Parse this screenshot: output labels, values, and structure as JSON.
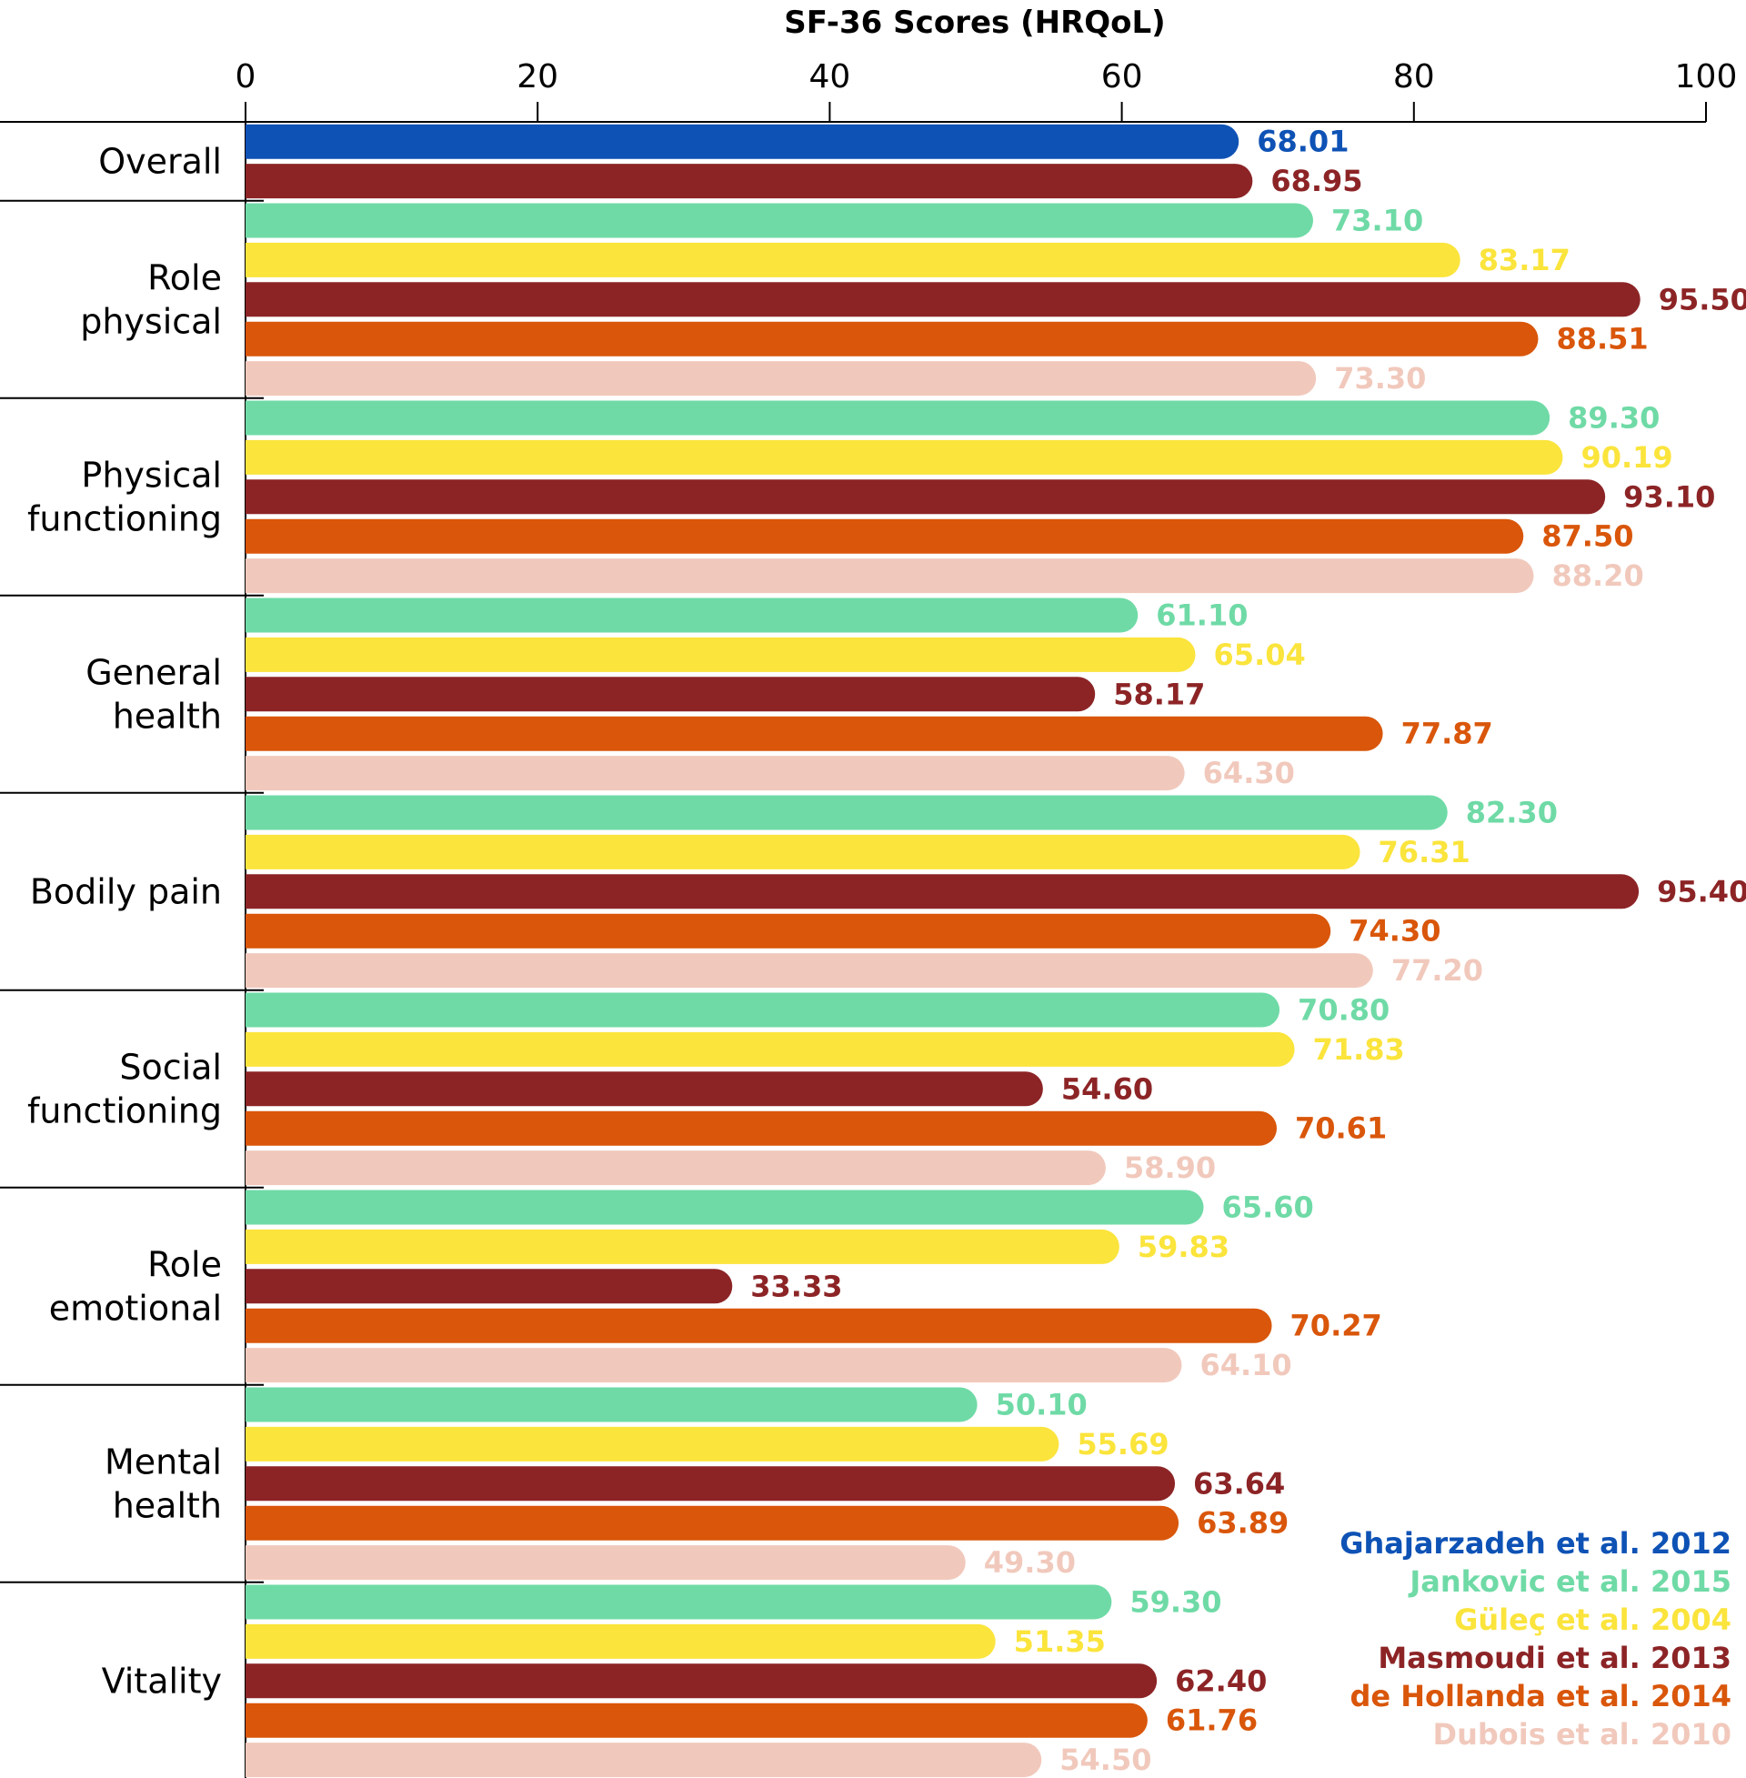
{
  "chart_data": {
    "type": "bar",
    "orientation": "horizontal",
    "title": "SF-36 Scores (HRQoL)",
    "xlabel": "SF-36 Scores (HRQoL)",
    "ylabel": "",
    "xlim": [
      0,
      100
    ],
    "x_ticks": [
      0,
      20,
      40,
      60,
      80,
      100
    ],
    "legend_position": "bottom-right",
    "series": [
      {
        "name": "Ghajarzadeh et al. 2012",
        "color": "#0e52b5"
      },
      {
        "name": "Jankovic et al. 2015",
        "color": "#6fdaa6"
      },
      {
        "name": "Güleç et al. 2004",
        "color": "#fbe43c"
      },
      {
        "name": "Masmoudi et al. 2013",
        "color": "#8c2426"
      },
      {
        "name": "de Hollanda et al. 2014",
        "color": "#d9560a"
      },
      {
        "name": "Dubois et al. 2010",
        "color": "#f1c9bc"
      }
    ],
    "categories": [
      {
        "label": [
          "Overall"
        ],
        "bars": [
          {
            "series": 0,
            "value": 68.01,
            "label": "68.01"
          },
          {
            "series": 3,
            "value": 68.95,
            "label": "68.95"
          }
        ]
      },
      {
        "label": [
          "Role",
          "physical"
        ],
        "bars": [
          {
            "series": 1,
            "value": 73.1,
            "label": "73.10"
          },
          {
            "series": 2,
            "value": 83.17,
            "label": "83.17"
          },
          {
            "series": 3,
            "value": 95.5,
            "label": "95.50"
          },
          {
            "series": 4,
            "value": 88.51,
            "label": "88.51"
          },
          {
            "series": 5,
            "value": 73.3,
            "label": "73.30"
          }
        ]
      },
      {
        "label": [
          "Physical",
          "functioning"
        ],
        "bars": [
          {
            "series": 1,
            "value": 89.3,
            "label": "89.30"
          },
          {
            "series": 2,
            "value": 90.19,
            "label": "90.19"
          },
          {
            "series": 3,
            "value": 93.1,
            "label": "93.10"
          },
          {
            "series": 4,
            "value": 87.5,
            "label": "87.50"
          },
          {
            "series": 5,
            "value": 88.2,
            "label": "88.20"
          }
        ]
      },
      {
        "label": [
          "General",
          "health"
        ],
        "bars": [
          {
            "series": 1,
            "value": 61.1,
            "label": "61.10"
          },
          {
            "series": 2,
            "value": 65.04,
            "label": "65.04"
          },
          {
            "series": 3,
            "value": 58.17,
            "label": "58.17"
          },
          {
            "series": 4,
            "value": 77.87,
            "label": "77.87"
          },
          {
            "series": 5,
            "value": 64.3,
            "label": "64.30"
          }
        ]
      },
      {
        "label": [
          "Bodily pain"
        ],
        "bars": [
          {
            "series": 1,
            "value": 82.3,
            "label": "82.30"
          },
          {
            "series": 2,
            "value": 76.31,
            "label": "76.31"
          },
          {
            "series": 3,
            "value": 95.4,
            "label": "95.40"
          },
          {
            "series": 4,
            "value": 74.3,
            "label": "74.30"
          },
          {
            "series": 5,
            "value": 77.2,
            "label": "77.20"
          }
        ]
      },
      {
        "label": [
          "Social",
          "functioning"
        ],
        "bars": [
          {
            "series": 1,
            "value": 70.8,
            "label": "70.80"
          },
          {
            "series": 2,
            "value": 71.83,
            "label": "71.83"
          },
          {
            "series": 3,
            "value": 54.6,
            "label": "54.60"
          },
          {
            "series": 4,
            "value": 70.61,
            "label": "70.61"
          },
          {
            "series": 5,
            "value": 58.9,
            "label": "58.90"
          }
        ]
      },
      {
        "label": [
          "Role",
          "emotional"
        ],
        "bars": [
          {
            "series": 1,
            "value": 65.6,
            "label": "65.60"
          },
          {
            "series": 2,
            "value": 59.83,
            "label": "59.83"
          },
          {
            "series": 3,
            "value": 33.33,
            "label": "33.33"
          },
          {
            "series": 4,
            "value": 70.27,
            "label": "70.27"
          },
          {
            "series": 5,
            "value": 64.1,
            "label": "64.10"
          }
        ]
      },
      {
        "label": [
          "Mental",
          "health"
        ],
        "bars": [
          {
            "series": 1,
            "value": 50.1,
            "label": "50.10"
          },
          {
            "series": 2,
            "value": 55.69,
            "label": "55.69"
          },
          {
            "series": 3,
            "value": 63.64,
            "label": "63.64"
          },
          {
            "series": 4,
            "value": 63.89,
            "label": "63.89"
          },
          {
            "series": 5,
            "value": 49.3,
            "label": "49.30"
          }
        ]
      },
      {
        "label": [
          "Vitality"
        ],
        "bars": [
          {
            "series": 1,
            "value": 59.3,
            "label": "59.30"
          },
          {
            "series": 2,
            "value": 51.35,
            "label": "51.35"
          },
          {
            "series": 3,
            "value": 62.4,
            "label": "62.40"
          },
          {
            "series": 4,
            "value": 61.76,
            "label": "61.76"
          },
          {
            "series": 5,
            "value": 54.5,
            "label": "54.50"
          }
        ]
      }
    ]
  }
}
